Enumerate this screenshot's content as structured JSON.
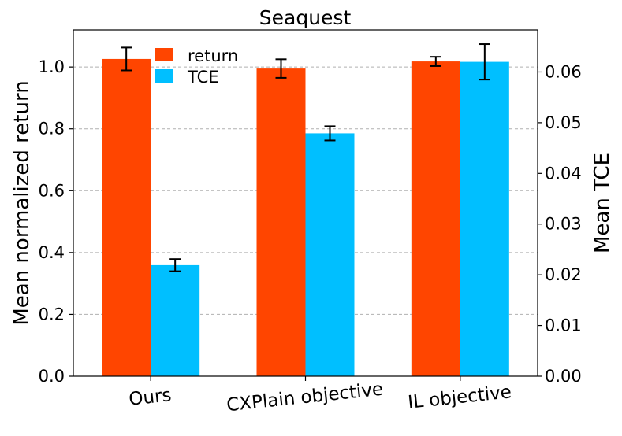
{
  "chart_data": {
    "type": "bar",
    "title": "Seaquest",
    "categories": [
      "Ours",
      "CXPlain objective",
      "IL objective"
    ],
    "ylabel_left": "Mean normalized return",
    "ylabel_right": "Mean TCE",
    "ylim_left": [
      0,
      1.12
    ],
    "ylim_right": [
      0,
      0.0683
    ],
    "yticks_left": [
      0.0,
      0.2,
      0.4,
      0.6,
      0.8,
      1.0
    ],
    "ytick_labels_left": [
      "0.0",
      "0.2",
      "0.4",
      "0.6",
      "0.8",
      "1.0"
    ],
    "yticks_right": [
      0.0,
      0.01,
      0.02,
      0.03,
      0.04,
      0.05,
      0.06
    ],
    "ytick_labels_right": [
      "0.00",
      "0.01",
      "0.02",
      "0.03",
      "0.04",
      "0.05",
      "0.06"
    ],
    "grid": true,
    "legend_position": "top-left",
    "series": [
      {
        "name": "return",
        "axis": "left",
        "color": "#ff4500",
        "values": [
          1.026,
          0.995,
          1.018
        ],
        "errors": [
          0.037,
          0.03,
          0.015
        ]
      },
      {
        "name": "TCE",
        "axis": "right",
        "color": "#00bfff",
        "values": [
          0.0219,
          0.0479,
          0.062
        ],
        "errors": [
          0.0012,
          0.0014,
          0.0035
        ]
      }
    ]
  }
}
